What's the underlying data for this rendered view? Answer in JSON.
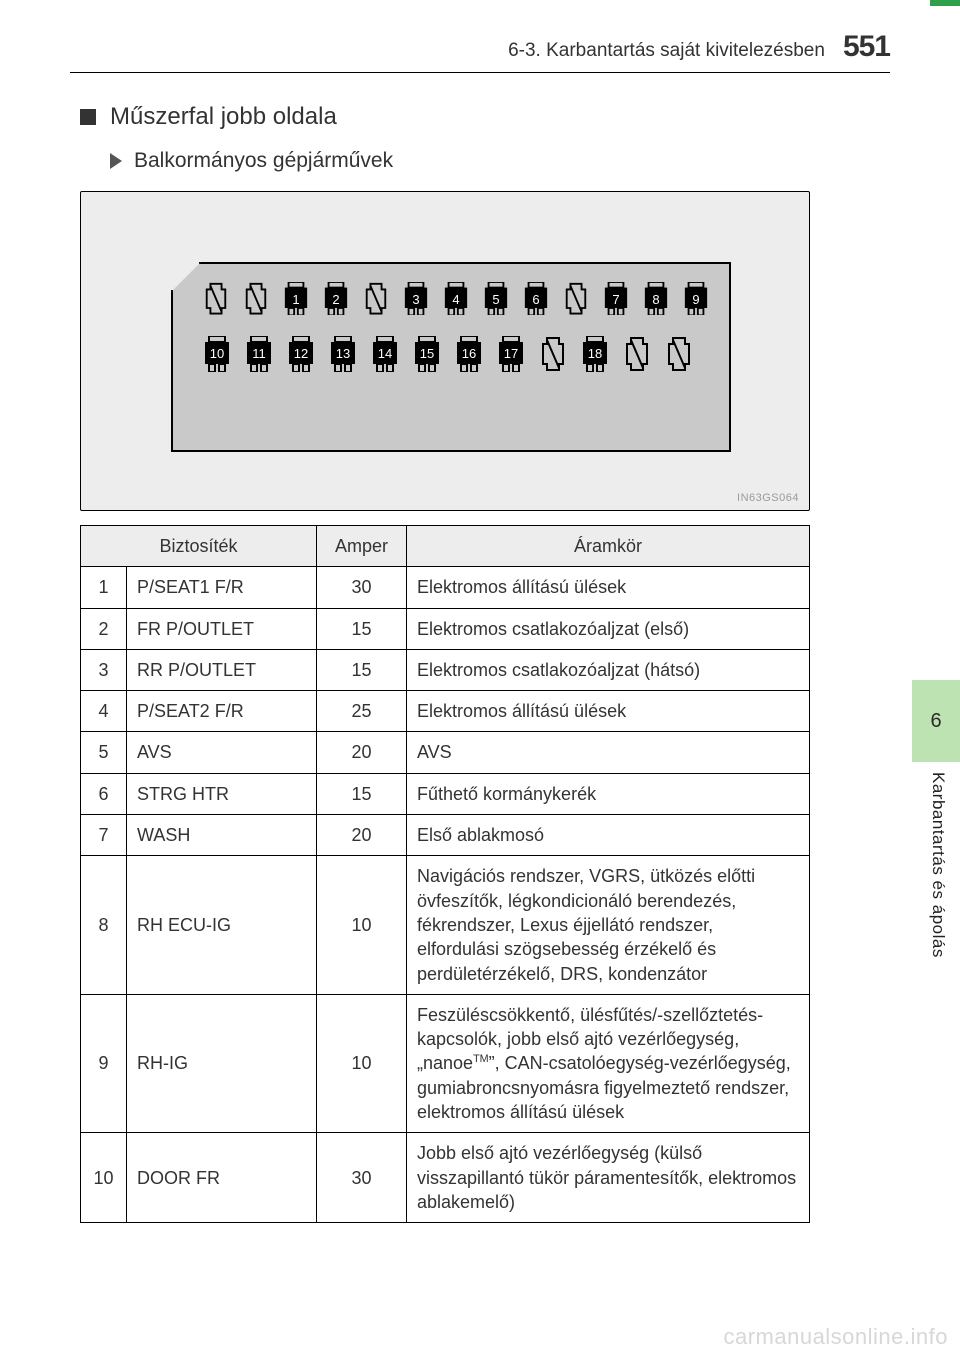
{
  "header": {
    "chapter": "6-3. Karbantartás saját kivitelezésben",
    "page_number": "551"
  },
  "section": {
    "title": "Műszerfal jobb oldala",
    "subtitle": "Balkormányos gépjárművek"
  },
  "diagram": {
    "code": "IN63GS064",
    "row1": [
      {
        "blank": true
      },
      {
        "blank": true
      },
      {
        "n": "1"
      },
      {
        "n": "2"
      },
      {
        "blank": true
      },
      {
        "n": "3"
      },
      {
        "n": "4"
      },
      {
        "n": "5"
      },
      {
        "n": "6"
      },
      {
        "blank": true
      },
      {
        "n": "7"
      },
      {
        "n": "8"
      },
      {
        "n": "9"
      }
    ],
    "row2": [
      {
        "n": "10"
      },
      {
        "n": "11"
      },
      {
        "n": "12"
      },
      {
        "n": "13"
      },
      {
        "n": "14"
      },
      {
        "n": "15"
      },
      {
        "n": "16"
      },
      {
        "n": "17"
      },
      {
        "blank": true
      },
      {
        "n": "18"
      },
      {
        "blank": true
      },
      {
        "blank": true
      }
    ]
  },
  "table": {
    "headers": {
      "fuse": "Biztosíték",
      "amp": "Amper",
      "circuit": "Áramkör"
    },
    "rows": [
      {
        "n": "1",
        "name": "P/SEAT1 F/R",
        "amp": "30",
        "desc": "Elektromos állítású ülések"
      },
      {
        "n": "2",
        "name": "FR P/OUTLET",
        "amp": "15",
        "desc": "Elektromos csatlakozóaljzat (első)"
      },
      {
        "n": "3",
        "name": "RR P/OUTLET",
        "amp": "15",
        "desc": "Elektromos csatlakozóaljzat (hátsó)"
      },
      {
        "n": "4",
        "name": "P/SEAT2 F/R",
        "amp": "25",
        "desc": "Elektromos állítású ülések"
      },
      {
        "n": "5",
        "name": "AVS",
        "amp": "20",
        "desc": "AVS"
      },
      {
        "n": "6",
        "name": "STRG HTR",
        "amp": "15",
        "desc": "Fűthető kormánykerék"
      },
      {
        "n": "7",
        "name": "WASH",
        "amp": "20",
        "desc": "Első ablakmosó"
      },
      {
        "n": "8",
        "name": "RH ECU-IG",
        "amp": "10",
        "desc": "Navigációs rendszer, VGRS, ütközés előtti övfeszítők, légkondicionáló berendezés, fékrendszer, Lexus éjjellátó rendszer, elfordulási szögsebesség érzékelő és perdületérzékelő, DRS, kondenzátor"
      },
      {
        "n": "9",
        "name": "RH-IG",
        "amp": "10",
        "desc": "Feszüléscsökkentő, ülésfűtés/-szellőztetés-kapcsolók, jobb első ajtó vezérlőegység, „nanoe™”, CAN-csatolóegység-vezérlőegység, gumiabroncsnyomásra figyelmeztető rendszer, elektromos állítású ülések"
      },
      {
        "n": "10",
        "name": "DOOR FR",
        "amp": "30",
        "desc": "Jobb első ajtó vezérlőegység (külső visszapillantó tükör páramentesítők, elektromos ablakemelő)"
      }
    ]
  },
  "sidebar": {
    "chapter_num": "6",
    "chapter_label": "Karbantartás és ápolás"
  },
  "watermark": "carmanualsonline.info",
  "colors": {
    "accent_green": "#2fa04a",
    "tab_green": "#bde3b2",
    "diagram_bg": "#ededed",
    "fusebox_bg": "#c9c9c9"
  }
}
